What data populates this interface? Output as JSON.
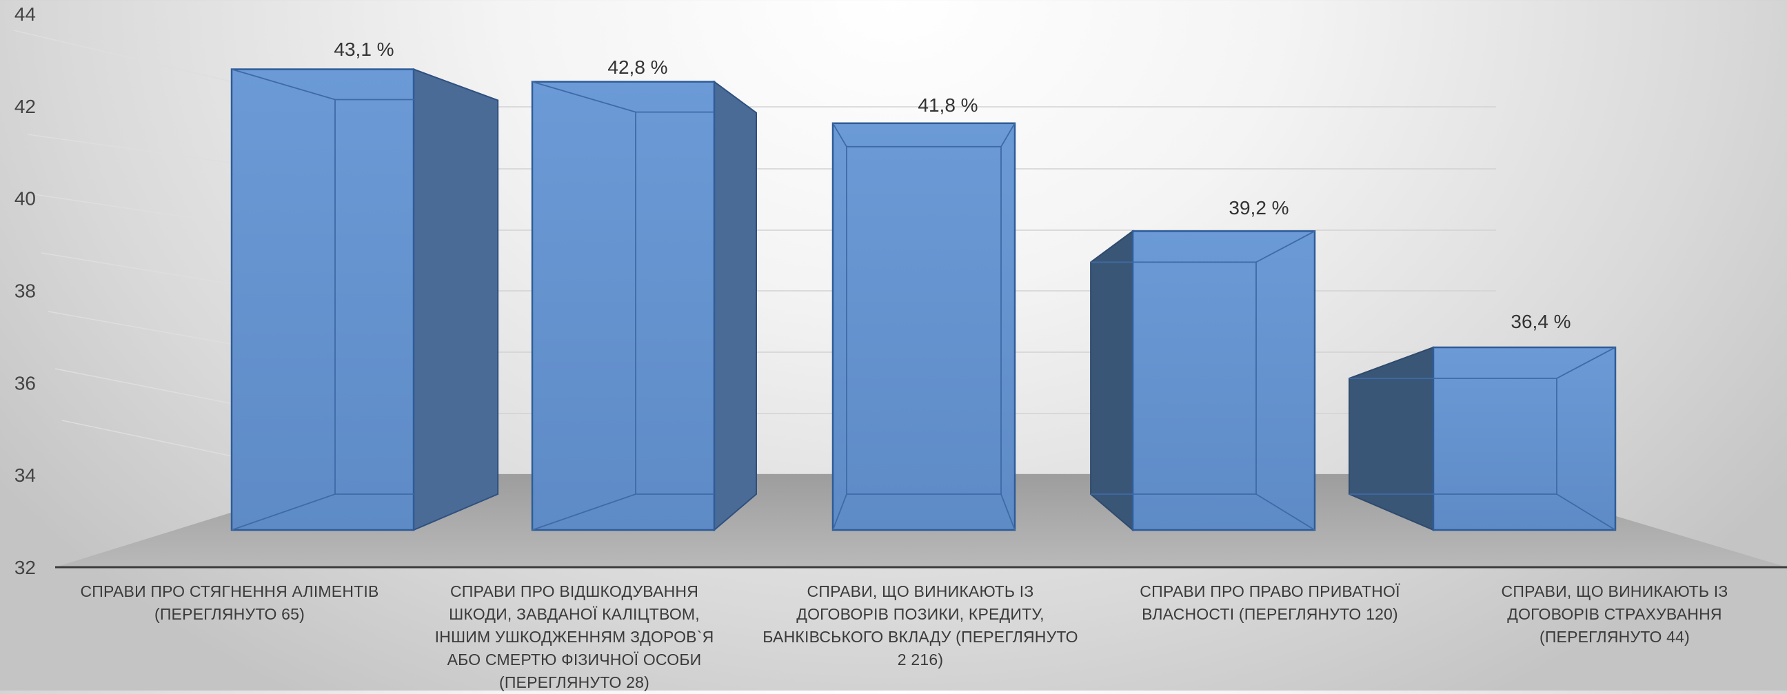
{
  "chart_data": {
    "type": "bar",
    "style": "3d-column",
    "title": "",
    "xlabel": "",
    "ylabel": "",
    "ylim": [
      32,
      44
    ],
    "yticks": [
      32,
      34,
      36,
      38,
      40,
      42,
      44
    ],
    "grid": true,
    "legend": "none",
    "bar_color": "#6a99d4",
    "categories": [
      "СПРАВИ ПРО СТЯГНЕННЯ АЛІМЕНТІВ\n(ПЕРЕГЛЯНУТО               65)",
      "СПРАВИ ПРО ВІДШКОДУВАННЯ\nШКОДИ, ЗАВДАНОЇ КАЛІЦТВОМ,\nІНШИМ УШКОДЖЕННЯМ ЗДОРОВ`Я\nАБО СМЕРТЮ ФІЗИЧНОЇ ОСОБИ\n(ПЕРЕГЛЯНУТО 28)",
      "СПРАВИ, ЩО ВИНИКАЮТЬ ІЗ\nДОГОВОРІВ ПОЗИКИ, КРЕДИТУ,\nБАНКІВСЬКОГО ВКЛАДУ (ПЕРЕГЛЯНУТО\n2 216)",
      "СПРАВИ ПРО ПРАВО ПРИВАТНОЇ\nВЛАСНОСТІ (ПЕРЕГЛЯНУТО 120)",
      "СПРАВИ, ЩО ВИНИКАЮТЬ ІЗ\nДОГОВОРІВ СТРАХУВАННЯ\n(ПЕРЕГЛЯНУТО 44)"
    ],
    "values": [
      43.1,
      42.8,
      41.8,
      39.2,
      36.4
    ],
    "data_labels": [
      "43,1 %",
      "42,8 %",
      "41,8 %",
      "39,2 %",
      "36,4 %"
    ]
  }
}
